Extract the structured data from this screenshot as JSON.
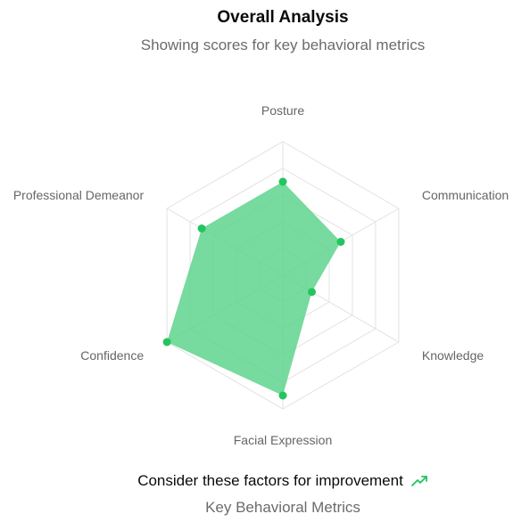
{
  "header": {
    "title": "Overall Analysis",
    "subtitle": "Showing scores for key behavioral metrics"
  },
  "footer": {
    "message": "Consider these factors for improvement",
    "icon": "trending-up-icon",
    "caption": "Key Behavioral Metrics"
  },
  "colors": {
    "fill": "#5fd38d",
    "point": "#22c55e",
    "grid": "#e2e2e2"
  },
  "chart_data": {
    "type": "radar",
    "title": "Overall Analysis",
    "subtitle": "Showing scores for key behavioral metrics",
    "categories": [
      "Posture",
      "Communication",
      "Knowledge",
      "Facial Expression",
      "Confidence",
      "Professional Demeanor"
    ],
    "series": [
      {
        "name": "Score",
        "values": [
          70,
          50,
          25,
          90,
          100,
          70
        ]
      }
    ],
    "rlim": [
      0,
      100
    ],
    "grid_levels": 5
  }
}
